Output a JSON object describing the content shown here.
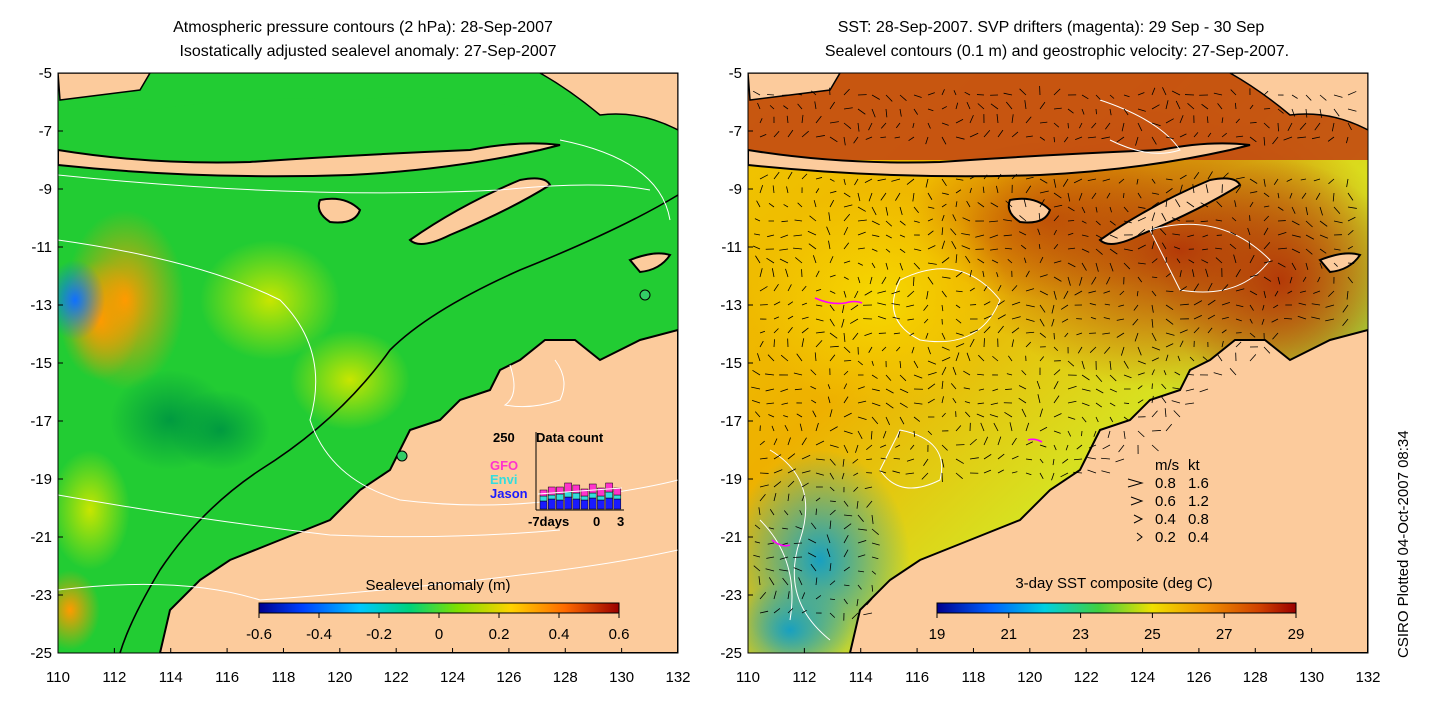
{
  "left_panel": {
    "title_line1": "Atmospheric pressure contours (2 hPa): 28-Sep-2007",
    "title_line2": "Isostatically adjusted sealevel anomaly: 27-Sep-2007",
    "colorbar_label": "Sealevel anomaly (m)",
    "colorbar_ticks": [
      "-0.6",
      "-0.4",
      "-0.2",
      "0",
      "0.2",
      "0.4",
      "0.6"
    ],
    "inset": {
      "top_value": "250",
      "label": "Data count",
      "legend": [
        {
          "name": "GFO",
          "color": "#ff33cc"
        },
        {
          "name": "Envi",
          "color": "#33dddd"
        },
        {
          "name": "Jason",
          "color": "#1a1aff"
        }
      ],
      "x_ticks": [
        "-7days",
        "0",
        "3"
      ]
    }
  },
  "right_panel": {
    "title_line1": "SST: 28-Sep-2007. SVP drifters (magenta): 29 Sep - 30 Sep",
    "title_line2": "Sealevel contours (0.1 m) and geostrophic velocity: 27-Sep-2007.",
    "colorbar_label": "3-day SST composite (deg C)",
    "colorbar_ticks": [
      "19",
      "21",
      "23",
      "25",
      "27",
      "29"
    ],
    "speed_legend": {
      "header_ms": "m/s",
      "header_kt": "kt",
      "rows": [
        {
          "ms": "0.8",
          "kt": "1.6"
        },
        {
          "ms": "0.6",
          "kt": "1.2"
        },
        {
          "ms": "0.4",
          "kt": "0.8"
        },
        {
          "ms": "0.2",
          "kt": "0.4"
        }
      ]
    }
  },
  "axes": {
    "y_ticks": [
      "-5",
      "-7",
      "-9",
      "-11",
      "-13",
      "-15",
      "-17",
      "-19",
      "-21",
      "-23",
      "-25"
    ],
    "x_ticks": [
      "110",
      "112",
      "114",
      "116",
      "118",
      "120",
      "122",
      "124",
      "126",
      "128",
      "130",
      "132"
    ]
  },
  "credit": "CSIRO Plotted 04-Oct-2007 08:34",
  "colors": {
    "land": "#fccb9c",
    "coast": "#000000",
    "sla_ocean": "#22cc33",
    "sst_warm": "#c84a10",
    "sst_mid": "#f2c400",
    "sst_cool": "#33bb77",
    "drifter": "#ff00ff"
  }
}
